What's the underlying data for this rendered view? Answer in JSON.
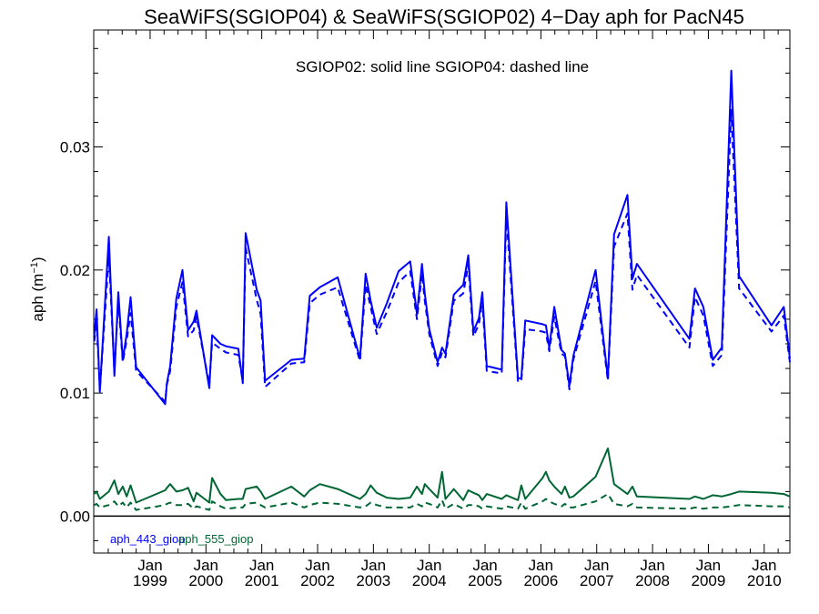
{
  "chart_data": {
    "type": "line",
    "title": "SeaWiFS(SGIOP04) & SeaWiFS(SGIOP02) 4−Day aph for PacN45",
    "subtitle": "SGIOP02: solid line   SGIOP04: dashed line",
    "ylabel": "aph (m",
    "ylabel_sup": "−1",
    "ylabel_close": ")",
    "ylim": [
      -0.003,
      0.0395
    ],
    "xlim": [
      1997.99,
      2010.46
    ],
    "yticks": [
      0.0,
      0.01,
      0.02,
      0.03
    ],
    "ytick_labels": [
      "0.00",
      "0.01",
      "0.02",
      "0.03"
    ],
    "xticks": [
      {
        "x": 1999.0,
        "month": "Jan",
        "year": "1999"
      },
      {
        "x": 2000.0,
        "month": "Jan",
        "year": "2000"
      },
      {
        "x": 2001.0,
        "month": "Jan",
        "year": "2001"
      },
      {
        "x": 2002.0,
        "month": "Jan",
        "year": "2002"
      },
      {
        "x": 2003.0,
        "month": "Jan",
        "year": "2003"
      },
      {
        "x": 2004.0,
        "month": "Jan",
        "year": "2004"
      },
      {
        "x": 2005.0,
        "month": "Jan",
        "year": "2005"
      },
      {
        "x": 2006.0,
        "month": "Jan",
        "year": "2006"
      },
      {
        "x": 2007.0,
        "month": "Jan",
        "year": "2007"
      },
      {
        "x": 2008.0,
        "month": "Jan",
        "year": "2008"
      },
      {
        "x": 2009.0,
        "month": "Jan",
        "year": "2009"
      },
      {
        "x": 2010.0,
        "month": "Jan",
        "year": "2010"
      }
    ],
    "zero_line": true,
    "legend": [
      {
        "label": "aph_443_giop",
        "color": "#0000ff"
      },
      {
        "label": "aph_555_giop",
        "color": "#006633"
      }
    ],
    "series": [
      {
        "name": "aph_443_giop",
        "style": "solid",
        "color": "#0000ff",
        "x": [
          1998.0,
          1998.04,
          1998.1,
          1998.26,
          1998.36,
          1998.43,
          1998.51,
          1998.58,
          1998.65,
          1998.75,
          1999.27,
          1999.3,
          1999.36,
          1999.47,
          1999.58,
          1999.68,
          1999.78,
          1999.83,
          2000.06,
          2000.11,
          2000.26,
          2000.36,
          2000.58,
          2000.66,
          2000.71,
          2000.91,
          2000.98,
          2001.06,
          2001.53,
          2001.76,
          2001.86,
          2002.04,
          2002.36,
          2002.76,
          2002.86,
          2002.95,
          2003.06,
          2003.24,
          2003.45,
          2003.66,
          2003.78,
          2003.87,
          2003.92,
          2004.0,
          2004.15,
          2004.23,
          2004.29,
          2004.44,
          2004.61,
          2004.7,
          2004.79,
          2004.89,
          2004.95,
          2005.03,
          2005.3,
          2005.38,
          2005.59,
          2005.65,
          2005.72,
          2006.03,
          2006.09,
          2006.15,
          2006.24,
          2006.37,
          2006.43,
          2006.51,
          2006.58,
          2006.98,
          2007.2,
          2007.31,
          2007.55,
          2007.64,
          2007.72,
          2008.66,
          2008.76,
          2008.91,
          2009.08,
          2009.24,
          2009.41,
          2009.55,
          2010.13,
          2010.35,
          2010.46
        ],
        "y": [
          0.0147,
          0.0168,
          0.0101,
          0.0227,
          0.0114,
          0.0182,
          0.0127,
          0.0148,
          0.0178,
          0.0121,
          0.0091,
          0.0108,
          0.0122,
          0.0177,
          0.02,
          0.0151,
          0.0158,
          0.0167,
          0.0104,
          0.0147,
          0.014,
          0.0138,
          0.0136,
          0.0108,
          0.023,
          0.0184,
          0.0175,
          0.011,
          0.0127,
          0.0128,
          0.0179,
          0.0186,
          0.0194,
          0.0128,
          0.0197,
          0.0175,
          0.0153,
          0.0173,
          0.0199,
          0.0207,
          0.0164,
          0.0205,
          0.0181,
          0.0152,
          0.0125,
          0.0137,
          0.0132,
          0.018,
          0.0188,
          0.0212,
          0.015,
          0.0161,
          0.0182,
          0.0122,
          0.0119,
          0.0255,
          0.0112,
          0.0112,
          0.0159,
          0.0156,
          0.0155,
          0.0137,
          0.017,
          0.0135,
          0.0132,
          0.0106,
          0.013,
          0.02,
          0.0112,
          0.0229,
          0.0261,
          0.0193,
          0.0205,
          0.0144,
          0.0185,
          0.017,
          0.0127,
          0.0137,
          0.0362,
          0.0195,
          0.0155,
          0.017,
          0.0128
        ]
      },
      {
        "name": "aph_443_giop",
        "style": "dashed",
        "color": "#0000ff",
        "x": [
          1998.0,
          1998.04,
          1998.1,
          1998.26,
          1998.36,
          1998.43,
          1998.51,
          1998.58,
          1998.65,
          1998.75,
          1999.27,
          1999.3,
          1999.36,
          1999.47,
          1999.58,
          1999.68,
          1999.78,
          1999.83,
          2000.06,
          2000.11,
          2000.26,
          2000.36,
          2000.58,
          2000.66,
          2000.71,
          2000.91,
          2000.98,
          2001.06,
          2001.53,
          2001.76,
          2001.86,
          2002.04,
          2002.36,
          2002.76,
          2002.86,
          2002.95,
          2003.06,
          2003.24,
          2003.45,
          2003.66,
          2003.78,
          2003.87,
          2003.92,
          2004.0,
          2004.15,
          2004.23,
          2004.29,
          2004.44,
          2004.61,
          2004.7,
          2004.79,
          2004.89,
          2004.95,
          2005.03,
          2005.3,
          2005.38,
          2005.59,
          2005.65,
          2005.72,
          2006.03,
          2006.09,
          2006.15,
          2006.24,
          2006.37,
          2006.43,
          2006.51,
          2006.58,
          2006.98,
          2007.2,
          2007.31,
          2007.55,
          2007.64,
          2007.72,
          2008.66,
          2008.76,
          2008.91,
          2009.08,
          2009.24,
          2009.41,
          2009.55,
          2010.13,
          2010.35,
          2010.46
        ],
        "y": [
          0.0142,
          0.016,
          0.0102,
          0.0212,
          0.0118,
          0.0175,
          0.0125,
          0.0143,
          0.0165,
          0.0118,
          0.0093,
          0.0107,
          0.0118,
          0.017,
          0.019,
          0.0146,
          0.0151,
          0.0162,
          0.0107,
          0.0141,
          0.0136,
          0.0133,
          0.0131,
          0.011,
          0.0218,
          0.0176,
          0.0164,
          0.0105,
          0.0124,
          0.0125,
          0.0173,
          0.018,
          0.0186,
          0.0126,
          0.0188,
          0.017,
          0.0148,
          0.0166,
          0.019,
          0.0199,
          0.016,
          0.0197,
          0.0175,
          0.0148,
          0.0122,
          0.0133,
          0.0129,
          0.0175,
          0.0181,
          0.0204,
          0.0146,
          0.0156,
          0.0175,
          0.0118,
          0.0116,
          0.0244,
          0.0109,
          0.011,
          0.0152,
          0.015,
          0.0149,
          0.0134,
          0.0162,
          0.0132,
          0.013,
          0.0103,
          0.0127,
          0.0191,
          0.011,
          0.0219,
          0.0246,
          0.0184,
          0.0196,
          0.0137,
          0.0178,
          0.0163,
          0.0122,
          0.0131,
          0.033,
          0.0185,
          0.015,
          0.0163,
          0.0125
        ]
      },
      {
        "name": "aph_555_giop",
        "style": "solid",
        "color": "#006633",
        "x": [
          1998.0,
          1998.04,
          1998.1,
          1998.26,
          1998.36,
          1998.43,
          1998.51,
          1998.58,
          1998.65,
          1998.75,
          1999.27,
          1999.3,
          1999.36,
          1999.47,
          1999.58,
          1999.68,
          1999.78,
          1999.83,
          2000.06,
          2000.11,
          2000.26,
          2000.36,
          2000.58,
          2000.66,
          2000.71,
          2000.91,
          2000.98,
          2001.06,
          2001.53,
          2001.76,
          2001.86,
          2002.04,
          2002.36,
          2002.76,
          2002.86,
          2002.95,
          2003.06,
          2003.24,
          2003.45,
          2003.66,
          2003.78,
          2003.87,
          2003.92,
          2004.0,
          2004.15,
          2004.23,
          2004.29,
          2004.44,
          2004.61,
          2004.7,
          2004.79,
          2004.89,
          2004.95,
          2005.03,
          2005.3,
          2005.38,
          2005.59,
          2005.65,
          2005.72,
          2006.03,
          2006.09,
          2006.15,
          2006.24,
          2006.37,
          2006.43,
          2006.51,
          2006.58,
          2006.98,
          2007.2,
          2007.31,
          2007.55,
          2007.64,
          2007.72,
          2008.66,
          2008.76,
          2008.91,
          2009.08,
          2009.24,
          2009.41,
          2009.55,
          2010.13,
          2010.35,
          2010.46
        ],
        "y": [
          0.0018,
          0.002,
          0.0014,
          0.002,
          0.0029,
          0.0018,
          0.0024,
          0.0016,
          0.0025,
          0.0011,
          0.0021,
          0.0023,
          0.0026,
          0.002,
          0.0021,
          0.0023,
          0.0012,
          0.0019,
          0.0011,
          0.0031,
          0.0018,
          0.0013,
          0.0014,
          0.0014,
          0.0022,
          0.0024,
          0.002,
          0.0014,
          0.0024,
          0.0016,
          0.0021,
          0.0026,
          0.0022,
          0.0014,
          0.0018,
          0.0025,
          0.0019,
          0.0015,
          0.0014,
          0.0015,
          0.0024,
          0.0018,
          0.0026,
          0.0022,
          0.0015,
          0.0036,
          0.0014,
          0.0022,
          0.0013,
          0.0021,
          0.0019,
          0.0017,
          0.0013,
          0.0018,
          0.0014,
          0.0017,
          0.0013,
          0.0025,
          0.0014,
          0.0031,
          0.0036,
          0.0029,
          0.0024,
          0.0018,
          0.0024,
          0.0015,
          0.0016,
          0.0032,
          0.0055,
          0.0026,
          0.0018,
          0.0024,
          0.0016,
          0.0014,
          0.0016,
          0.0014,
          0.0017,
          0.0016,
          0.0018,
          0.002,
          0.0019,
          0.0018,
          0.0016
        ]
      },
      {
        "name": "aph_555_giop",
        "style": "dashed",
        "color": "#006633",
        "x": [
          1998.0,
          1998.04,
          1998.1,
          1998.26,
          1998.36,
          1998.43,
          1998.51,
          1998.58,
          1998.65,
          1998.75,
          1999.27,
          1999.3,
          1999.36,
          1999.47,
          1999.58,
          1999.68,
          1999.78,
          1999.83,
          2000.06,
          2000.11,
          2000.26,
          2000.36,
          2000.58,
          2000.66,
          2000.71,
          2000.91,
          2000.98,
          2001.06,
          2001.53,
          2001.76,
          2001.86,
          2002.04,
          2002.36,
          2002.76,
          2002.86,
          2002.95,
          2003.06,
          2003.24,
          2003.45,
          2003.66,
          2003.78,
          2003.87,
          2003.92,
          2004.0,
          2004.15,
          2004.23,
          2004.29,
          2004.44,
          2004.61,
          2004.7,
          2004.79,
          2004.89,
          2004.95,
          2005.03,
          2005.3,
          2005.38,
          2005.59,
          2005.65,
          2005.72,
          2006.03,
          2006.09,
          2006.15,
          2006.24,
          2006.37,
          2006.43,
          2006.51,
          2006.58,
          2006.98,
          2007.2,
          2007.31,
          2007.55,
          2007.64,
          2007.72,
          2008.66,
          2008.76,
          2008.91,
          2009.08,
          2009.24,
          2009.41,
          2009.55,
          2010.13,
          2010.35,
          2010.46
        ],
        "y": [
          0.0009,
          0.001,
          0.0007,
          0.0009,
          0.0012,
          0.0008,
          0.0011,
          0.0007,
          0.0011,
          0.0005,
          0.0009,
          0.001,
          0.0011,
          0.0009,
          0.0009,
          0.001,
          0.0006,
          0.0008,
          0.0005,
          0.0012,
          0.0008,
          0.0006,
          0.0007,
          0.0007,
          0.001,
          0.0011,
          0.0009,
          0.0007,
          0.0011,
          0.0007,
          0.0009,
          0.0011,
          0.001,
          0.0007,
          0.0008,
          0.0011,
          0.0009,
          0.0007,
          0.0007,
          0.0007,
          0.001,
          0.0008,
          0.0011,
          0.001,
          0.0007,
          0.0013,
          0.0006,
          0.001,
          0.0006,
          0.0009,
          0.0009,
          0.0008,
          0.0006,
          0.0008,
          0.0006,
          0.0008,
          0.0006,
          0.0011,
          0.0006,
          0.0012,
          0.0014,
          0.0012,
          0.001,
          0.0008,
          0.001,
          0.0007,
          0.0007,
          0.0012,
          0.0018,
          0.001,
          0.0008,
          0.001,
          0.0007,
          0.0006,
          0.0007,
          0.0006,
          0.0007,
          0.0007,
          0.0008,
          0.0009,
          0.0008,
          0.0008,
          0.0007
        ]
      }
    ]
  }
}
